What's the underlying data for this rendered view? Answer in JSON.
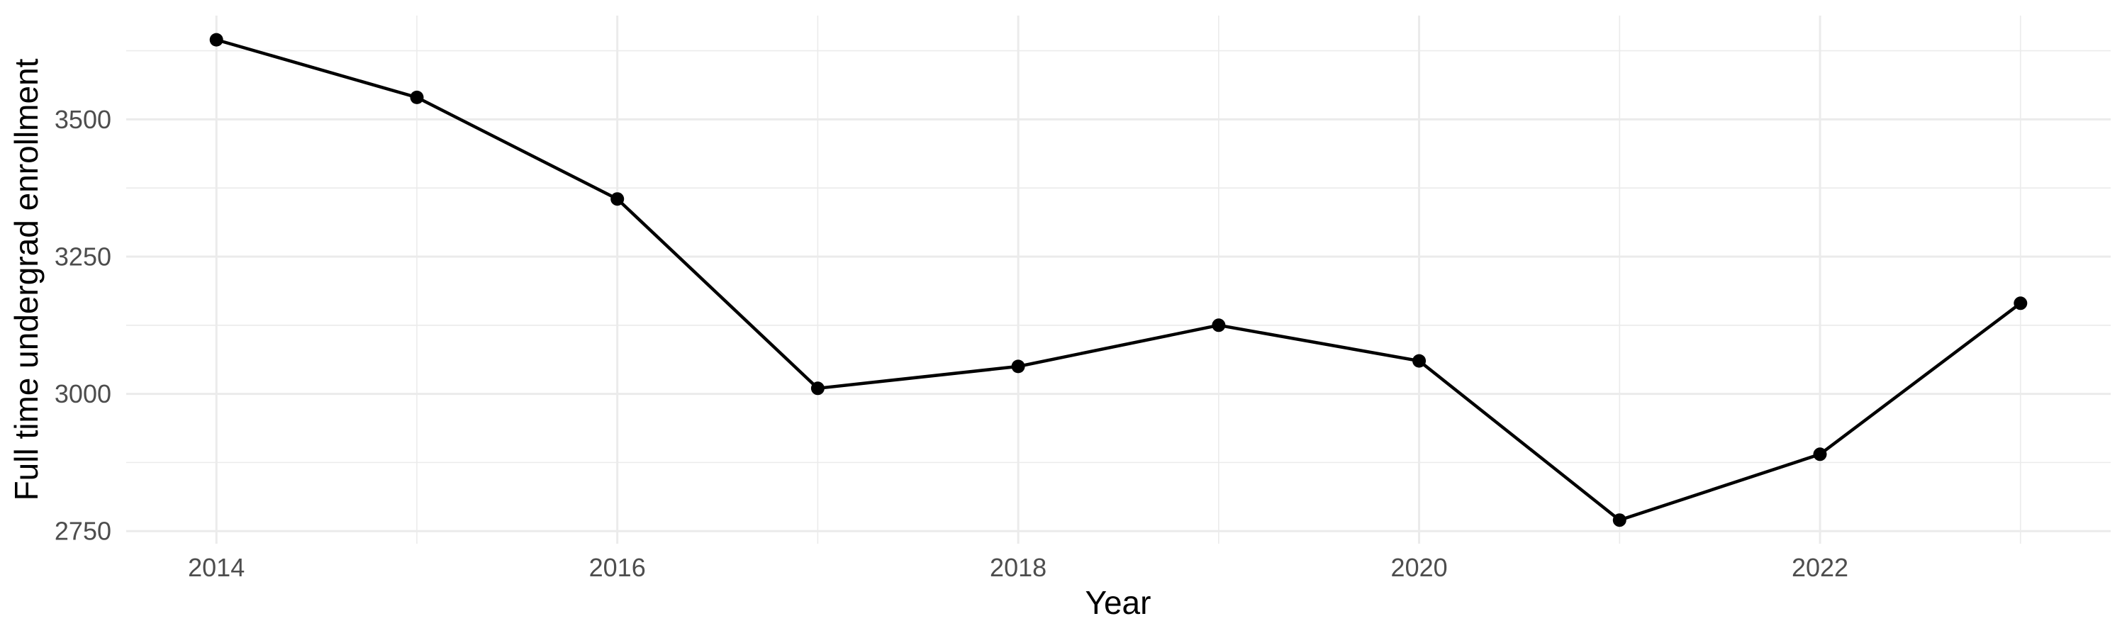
{
  "chart_data": {
    "type": "line",
    "title": "",
    "xlabel": "Year",
    "ylabel": "Full time undergrad enrollment",
    "x": [
      2014,
      2015,
      2016,
      2017,
      2018,
      2019,
      2020,
      2021,
      2022,
      2023
    ],
    "series": [
      {
        "name": "Full time undergrad enrollment",
        "values": [
          3645,
          3540,
          3355,
          3010,
          3050,
          3125,
          3060,
          2770,
          2890,
          3165
        ]
      }
    ],
    "x_ticks": {
      "major": [
        2014,
        2016,
        2018,
        2020,
        2022
      ],
      "minor": [
        2015,
        2017,
        2019,
        2021,
        2023
      ],
      "labels": [
        "2014",
        "2016",
        "2018",
        "2020",
        "2022"
      ]
    },
    "y_ticks": {
      "major": [
        3500,
        3250,
        3000,
        2750
      ],
      "minor": [
        3625,
        3375,
        3125,
        2875
      ],
      "labels": [
        "3500",
        "3250",
        "3000",
        "2750"
      ]
    },
    "xlim": [
      2013.55,
      2023.45
    ],
    "ylim": [
      2727,
      3689
    ],
    "grid": "on",
    "legend": "none",
    "colors": {
      "line": "#000000",
      "point": "#000000",
      "grid": "#EBEBEB",
      "tick_label": "#4D4D4D",
      "axis_title": "#000000",
      "background": "#FFFFFF"
    }
  }
}
